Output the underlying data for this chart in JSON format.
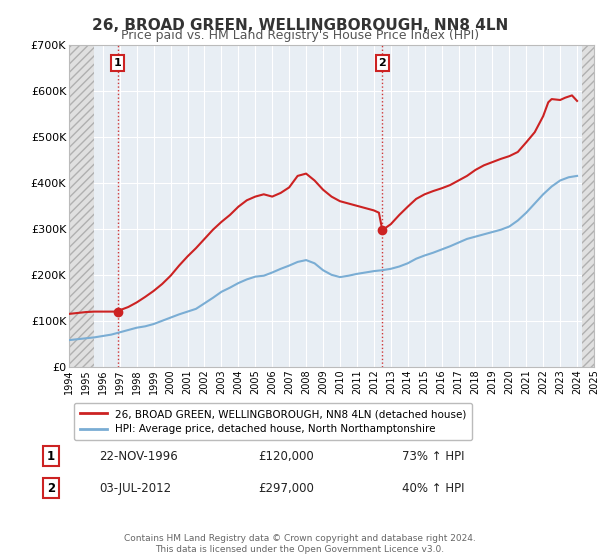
{
  "title": "26, BROAD GREEN, WELLINGBOROUGH, NN8 4LN",
  "subtitle": "Price paid vs. HM Land Registry's House Price Index (HPI)",
  "ylim": [
    0,
    700000
  ],
  "yticks": [
    0,
    100000,
    200000,
    300000,
    400000,
    500000,
    600000,
    700000
  ],
  "ytick_labels": [
    "£0",
    "£100K",
    "£200K",
    "£300K",
    "£400K",
    "£500K",
    "£600K",
    "£700K"
  ],
  "hpi_color": "#7aadd4",
  "price_color": "#cc2222",
  "point1_x": 1996.88,
  "point1_y": 120000,
  "point1_label": "1",
  "point1_date": "22-NOV-1996",
  "point1_price": "£120,000",
  "point1_hpi": "73% ↑ HPI",
  "point2_x": 2012.5,
  "point2_y": 297000,
  "point2_label": "2",
  "point2_date": "03-JUL-2012",
  "point2_price": "£297,000",
  "point2_hpi": "40% ↑ HPI",
  "legend_label1": "26, BROAD GREEN, WELLINGBOROUGH, NN8 4LN (detached house)",
  "legend_label2": "HPI: Average price, detached house, North Northamptonshire",
  "footer": "Contains HM Land Registry data © Crown copyright and database right 2024.\nThis data is licensed under the Open Government Licence v3.0.",
  "plot_bg": "#e8eef4",
  "hatch_color": "#d0d0d0",
  "grid_color": "#ffffff",
  "xmin": 1994.0,
  "xmax": 2025.0,
  "hatch_left_end": 1995.5,
  "hatch_right_start": 2024.3
}
